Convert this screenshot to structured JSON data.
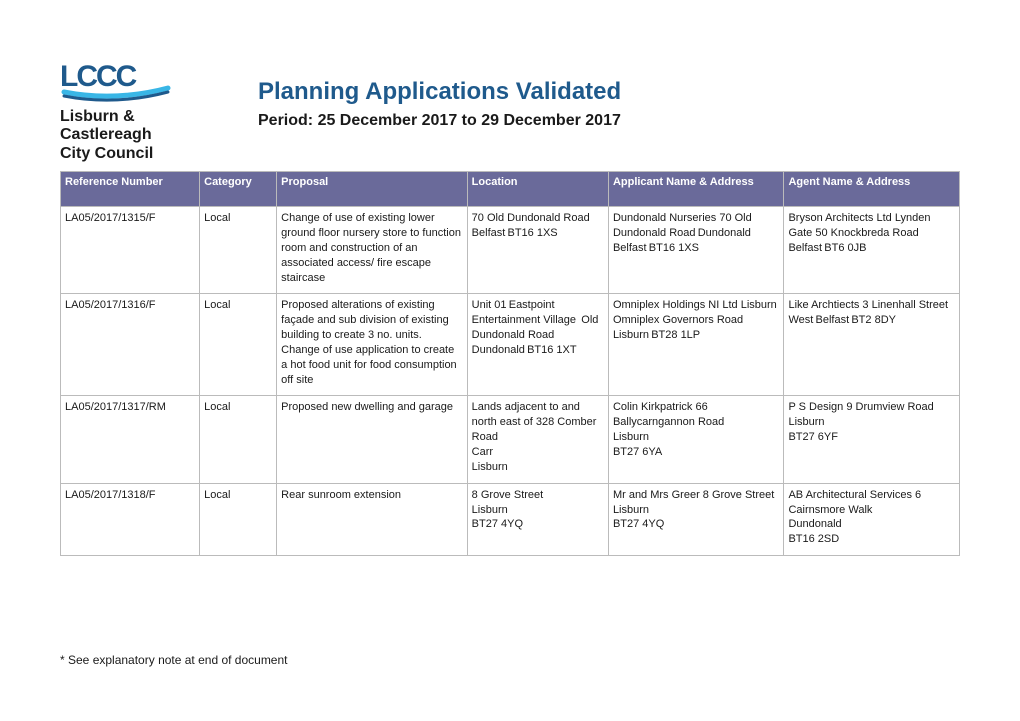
{
  "header": {
    "logo_line1": "Lisburn &",
    "logo_line2": "Castlereagh",
    "logo_line3": "City Council",
    "title": "Planning Applications Validated",
    "period": "Period: 25 December 2017 to 29 December 2017"
  },
  "table": {
    "header_bg": "#6a6a9a",
    "header_fg": "#ffffff",
    "border_color": "#bbbbbb",
    "columns": [
      {
        "label": "Reference Number",
        "width": 130
      },
      {
        "label": "Category",
        "width": 72
      },
      {
        "label": "Proposal",
        "width": 178
      },
      {
        "label": "Location",
        "width": 132
      },
      {
        "label": "Applicant Name & Address",
        "width": 164
      },
      {
        "label": "Agent Name & Address",
        "width": 164
      }
    ],
    "rows": [
      {
        "ref": "LA05/2017/1315/F",
        "cat": "Local",
        "prop": "Change of use of existing lower ground floor nursery store to function room and construction of an associated access/ fire escape staircase",
        "loc": "70 Old Dundonald Road  Belfast BT16 1XS ",
        "app": "Dundonald Nurseries   70 Old Dundonald Road Dundonald  Belfast BT16 1XS ",
        "age": "Bryson Architects Ltd Lynden Gate 50 Knockbreda Road  Belfast BT6 0JB "
      },
      {
        "ref": "LA05/2017/1316/F",
        "cat": "Local",
        "prop": "Proposed alterations of existing façade and sub division of existing building to create 3 no. units. Change of use application to create a hot food unit for food consumption off site",
        "loc": "Unit 01 Eastpoint Entertainment Village  Old Dundonald Road  Dundonald BT16 1XT ",
        "app": "Omniplex Holdings NI Ltd Lisburn Omniplex Governors Road Lisburn BT28 1LP ",
        "age": "Like Archtiects 3 Linenhall Street West Belfast BT2 8DY "
      },
      {
        "ref": "LA05/2017/1317/RM",
        "cat": "Local",
        "prop": "Proposed new dwelling and garage",
        "loc": "Lands adjacent to and north east of 328 Comber Road \n Carr \n Lisburn ",
        "app": "Colin Kirkpatrick   66 Ballycarngannon Road \n Lisburn \n BT27 6YA ",
        "age": "P S Design 9 Drumview Road \n Lisburn \n BT27 6YF "
      },
      {
        "ref": "LA05/2017/1318/F",
        "cat": "Local",
        "prop": "Rear sunroom extension",
        "loc": "8 Grove Street \n Lisburn \n BT27 4YQ ",
        "app": "Mr and Mrs Greer   8 Grove Street \n Lisburn \n BT27 4YQ ",
        "age": "AB Architectural Services 6 Cairnsmore Walk \n Dundonald \n BT16 2SD "
      }
    ]
  },
  "footnote": "* See explanatory note at end of document",
  "colors": {
    "title": "#1f5a8c",
    "text": "#1a1a1a",
    "logo_swoosh_light": "#39b6e6",
    "logo_swoosh_dark": "#1f5a8c"
  }
}
